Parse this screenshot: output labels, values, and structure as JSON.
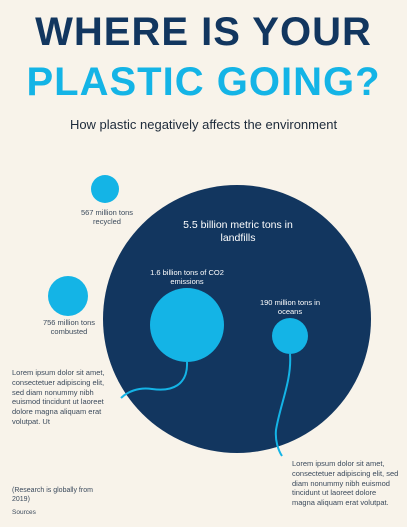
{
  "title_line1": "WHERE IS YOUR",
  "title_line2": "PLASTIC GOING?",
  "subtitle": "How plastic negatively affects the environment",
  "colors": {
    "dark_navy": "#12365f",
    "accent_blue": "#14b4e6",
    "background": "#f8f3ea"
  },
  "chart_data": {
    "type": "bubble",
    "title": "WHERE IS YOUR PLASTIC GOING?",
    "subtitle": "How plastic negatively affects the environment",
    "series": [
      {
        "label": "5.5 billion metric tons in landfills",
        "value": 5.5,
        "unit": "billion metric tons"
      },
      {
        "label": "1.6 billion tons of CO2 emissions",
        "value": 1.6,
        "unit": "billion tons"
      },
      {
        "label": "190 million tons in oceans",
        "value": 0.19,
        "unit": "billion tons"
      },
      {
        "label": "567 million tons recycled",
        "value": 0.567,
        "unit": "billion tons"
      },
      {
        "label": "756 million tons combusted",
        "value": 0.756,
        "unit": "billion tons"
      }
    ]
  },
  "labels": {
    "landfills": "5.5 billion metric tons in landfills",
    "co2": "1.6 billion tons of CO2 emissions",
    "oceans": "190 million tons in oceans",
    "recycled": "567 million tons recycled",
    "combusted": "756 million tons combusted"
  },
  "notes": {
    "left": "Lorem ipsum dolor sit amet, consectetuer adipiscing elit, sed diam nonummy nibh euismod tincidunt ut laoreet dolore magna aliquam erat volutpat. Ut",
    "right": "Lorem ipsum dolor sit amet, consectetuer adipiscing elit, sed diam nonummy nibh euismod tincidunt ut laoreet dolore magna aliquam erat volutpat."
  },
  "research_note": "(Research is globally from 2019)",
  "sources": "Sources"
}
